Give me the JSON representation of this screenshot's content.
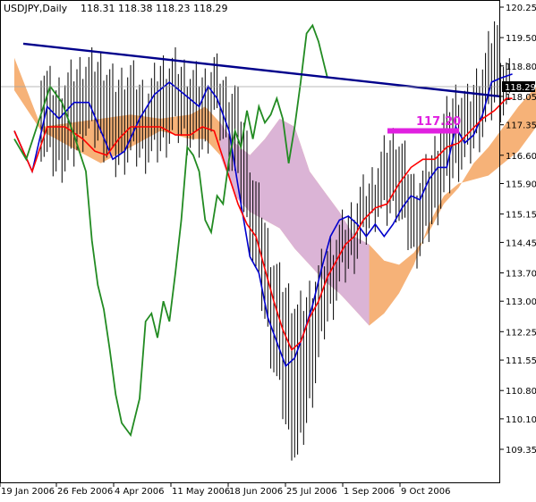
{
  "header": {
    "symbol": "USDJPY,Daily",
    "ohlc": "118.31 118.38 118.23 118.29"
  },
  "annotation": {
    "label": "117.20",
    "color": "#e020e0"
  },
  "colors": {
    "price_bars": "#000000",
    "trendline": "#00008b",
    "kijun": "#ff0000",
    "tenkan": "#0000cd",
    "chikou": "#228b22",
    "kumo_bull": "#f4a460",
    "kumo_bear": "#d8b4e0",
    "grid": "#c0c0c0"
  },
  "chart_data": {
    "type": "line",
    "title": "USDJPY,Daily",
    "ylim": [
      108.8,
      120.45
    ],
    "y_ticks": [
      "120.25",
      "119.50",
      "118.80",
      "118.05",
      "117.35",
      "116.60",
      "115.90",
      "115.15",
      "114.45",
      "113.70",
      "113.00",
      "112.25",
      "111.55",
      "110.80",
      "110.10",
      "109.35"
    ],
    "x_labels": [
      "19 Jan 2006",
      "26 Feb 2006",
      "4 Apr 2006",
      "11 May 2006",
      "18 Jun 2006",
      "25 Jul 2006",
      "1 Sep 2006",
      "9 Oct 2006"
    ],
    "current_price": 118.29,
    "current_price_label": "118.29",
    "trendline": [
      {
        "x": "2006-01-23",
        "y": 119.35
      },
      {
        "x": "2006-11-10",
        "y": 118.05
      }
    ],
    "series": [
      {
        "name": "",
        "role": "price",
        "style": "bars",
        "points": [
          [
            0,
            118.8,
            116.8
          ],
          [
            5,
            118.2,
            116.2
          ],
          [
            10,
            118.6,
            116.4
          ],
          [
            15,
            118.9,
            117.2
          ],
          [
            20,
            118.9,
            116.9
          ],
          [
            25,
            118.4,
            116.3
          ],
          [
            30,
            118.7,
            116.6
          ],
          [
            35,
            118.1,
            116.5
          ],
          [
            40,
            118.8,
            116.7
          ],
          [
            45,
            118.9,
            117.2
          ],
          [
            50,
            118.6,
            116.9
          ],
          [
            55,
            118.5,
            116.7
          ],
          [
            58,
            118.9,
            117.6
          ],
          [
            62,
            118.3,
            116.8
          ],
          [
            65,
            118.2,
            116.1
          ],
          [
            68,
            117.4,
            115.2
          ],
          [
            71,
            116.1,
            114.1
          ],
          [
            74,
            115.3,
            113.0
          ],
          [
            77,
            114.2,
            111.7
          ],
          [
            80,
            113.6,
            110.7
          ],
          [
            83,
            113.2,
            109.6
          ],
          [
            86,
            112.8,
            109.1
          ],
          [
            89,
            113.1,
            110.0
          ],
          [
            92,
            113.6,
            111.1
          ],
          [
            95,
            114.1,
            112.3
          ],
          [
            98,
            114.5,
            112.9
          ],
          [
            101,
            114.9,
            113.6
          ],
          [
            104,
            115.2,
            113.9
          ],
          [
            107,
            115.7,
            114.3
          ],
          [
            110,
            115.9,
            114.8
          ],
          [
            113,
            116.4,
            115.2
          ],
          [
            116,
            116.9,
            115.1
          ],
          [
            119,
            117.1,
            115.3
          ],
          [
            122,
            116.6,
            114.7
          ],
          [
            125,
            115.9,
            114.1
          ],
          [
            128,
            116.1,
            114.3
          ],
          [
            131,
            116.6,
            114.9
          ],
          [
            134,
            117.3,
            115.4
          ],
          [
            137,
            117.9,
            115.9
          ],
          [
            140,
            118.2,
            116.3
          ],
          [
            143,
            118.0,
            116.5
          ],
          [
            146,
            118.5,
            116.9
          ],
          [
            149,
            119.0,
            117.3
          ],
          [
            152,
            119.9,
            117.9
          ],
          [
            155,
            118.9,
            117.7
          ],
          [
            158,
            118.5,
            117.8
          ]
        ]
      },
      {
        "name": "",
        "role": "tenkan",
        "values": [
          [
            -9,
            117.2
          ],
          [
            -3,
            116.2
          ],
          [
            2,
            117.8
          ],
          [
            6,
            117.5
          ],
          [
            11,
            117.9
          ],
          [
            16,
            117.9
          ],
          [
            20,
            117.2
          ],
          [
            24,
            116.5
          ],
          [
            28,
            116.7
          ],
          [
            33,
            117.5
          ],
          [
            38,
            118.1
          ],
          [
            43,
            118.4
          ],
          [
            48,
            118.1
          ],
          [
            53,
            117.8
          ],
          [
            56,
            118.3
          ],
          [
            59,
            118.0
          ],
          [
            63,
            117.2
          ],
          [
            67,
            115.4
          ],
          [
            70,
            114.1
          ],
          [
            73,
            113.7
          ],
          [
            76,
            112.6
          ],
          [
            79,
            112.0
          ],
          [
            82,
            111.4
          ],
          [
            85,
            111.6
          ],
          [
            88,
            112.2
          ],
          [
            91,
            112.9
          ],
          [
            94,
            113.8
          ],
          [
            97,
            114.6
          ],
          [
            100,
            115.0
          ],
          [
            103,
            115.1
          ],
          [
            106,
            114.9
          ],
          [
            109,
            114.6
          ],
          [
            112,
            114.9
          ],
          [
            115,
            114.6
          ],
          [
            118,
            114.9
          ],
          [
            121,
            115.3
          ],
          [
            124,
            115.6
          ],
          [
            127,
            115.5
          ],
          [
            130,
            116.0
          ],
          [
            133,
            116.3
          ],
          [
            136,
            116.3
          ],
          [
            139,
            117.3
          ],
          [
            142,
            116.9
          ],
          [
            145,
            117.1
          ],
          [
            148,
            117.6
          ],
          [
            151,
            118.4
          ],
          [
            154,
            118.5
          ],
          [
            158,
            118.6
          ]
        ]
      },
      {
        "name": "",
        "role": "kijun",
        "values": [
          [
            -9,
            117.2
          ],
          [
            -3,
            116.2
          ],
          [
            2,
            117.3
          ],
          [
            8,
            117.3
          ],
          [
            14,
            117.0
          ],
          [
            18,
            116.7
          ],
          [
            22,
            116.6
          ],
          [
            26,
            117.0
          ],
          [
            30,
            117.3
          ],
          [
            40,
            117.3
          ],
          [
            45,
            117.1
          ],
          [
            50,
            117.1
          ],
          [
            54,
            117.3
          ],
          [
            58,
            117.2
          ],
          [
            62,
            116.3
          ],
          [
            66,
            115.4
          ],
          [
            69,
            114.9
          ],
          [
            72,
            114.6
          ],
          [
            75,
            113.8
          ],
          [
            78,
            113.0
          ],
          [
            81,
            112.3
          ],
          [
            84,
            111.8
          ],
          [
            87,
            112.0
          ],
          [
            90,
            112.6
          ],
          [
            93,
            113.0
          ],
          [
            96,
            113.6
          ],
          [
            99,
            114.0
          ],
          [
            102,
            114.4
          ],
          [
            105,
            114.6
          ],
          [
            108,
            115.0
          ],
          [
            112,
            115.3
          ],
          [
            116,
            115.4
          ],
          [
            120,
            115.9
          ],
          [
            124,
            116.3
          ],
          [
            128,
            116.5
          ],
          [
            132,
            116.5
          ],
          [
            136,
            116.8
          ],
          [
            140,
            116.9
          ],
          [
            144,
            117.2
          ],
          [
            148,
            117.5
          ],
          [
            152,
            117.7
          ],
          [
            156,
            118.0
          ],
          [
            158,
            118.0
          ]
        ]
      },
      {
        "name": "",
        "role": "chikou",
        "values": [
          [
            -9,
            117.0
          ],
          [
            -5,
            116.5
          ],
          [
            -1,
            117.4
          ],
          [
            3,
            118.3
          ],
          [
            7,
            117.9
          ],
          [
            11,
            117.1
          ],
          [
            15,
            116.2
          ],
          [
            17,
            114.5
          ],
          [
            19,
            113.4
          ],
          [
            21,
            112.8
          ],
          [
            23,
            111.8
          ],
          [
            25,
            110.7
          ],
          [
            27,
            110.0
          ],
          [
            30,
            109.7
          ],
          [
            33,
            110.6
          ],
          [
            35,
            112.5
          ],
          [
            37,
            112.7
          ],
          [
            39,
            112.1
          ],
          [
            41,
            113.0
          ],
          [
            43,
            112.5
          ],
          [
            45,
            113.7
          ],
          [
            47,
            115.0
          ],
          [
            49,
            116.8
          ],
          [
            51,
            116.6
          ],
          [
            53,
            116.2
          ],
          [
            55,
            115.0
          ],
          [
            57,
            114.7
          ],
          [
            59,
            115.6
          ],
          [
            61,
            115.4
          ],
          [
            63,
            116.5
          ],
          [
            65,
            117.2
          ],
          [
            67,
            116.8
          ],
          [
            69,
            117.7
          ],
          [
            71,
            117.0
          ],
          [
            73,
            117.8
          ],
          [
            75,
            117.4
          ],
          [
            77,
            117.6
          ],
          [
            79,
            118.0
          ],
          [
            81,
            117.5
          ],
          [
            83,
            116.4
          ],
          [
            85,
            117.3
          ],
          [
            87,
            118.4
          ],
          [
            89,
            119.6
          ],
          [
            91,
            119.8
          ],
          [
            93,
            119.4
          ],
          [
            95,
            118.8
          ],
          [
            96,
            118.5
          ]
        ]
      },
      {
        "name": "",
        "role": "kumo",
        "upper": [
          [
            -9,
            119.0
          ],
          [
            0,
            117.3
          ],
          [
            10,
            117.4
          ],
          [
            20,
            117.5
          ],
          [
            30,
            117.6
          ],
          [
            40,
            117.5
          ],
          [
            50,
            117.6
          ],
          [
            55,
            117.8
          ],
          [
            60,
            117.4
          ],
          [
            65,
            116.9
          ],
          [
            70,
            116.6
          ],
          [
            75,
            117.0
          ],
          [
            80,
            117.5
          ],
          [
            85,
            117.3
          ],
          [
            90,
            116.2
          ],
          [
            95,
            115.7
          ],
          [
            100,
            115.2
          ],
          [
            105,
            114.6
          ],
          [
            110,
            114.4
          ],
          [
            115,
            114.0
          ],
          [
            120,
            113.9
          ],
          [
            125,
            114.2
          ],
          [
            130,
            114.7
          ],
          [
            135,
            115.4
          ],
          [
            140,
            115.8
          ],
          [
            145,
            116.4
          ],
          [
            150,
            116.8
          ],
          [
            155,
            117.3
          ],
          [
            160,
            117.8
          ],
          [
            166,
            118.3
          ]
        ],
        "lower": [
          [
            -9,
            118.2
          ],
          [
            0,
            117.2
          ],
          [
            10,
            116.8
          ],
          [
            20,
            116.4
          ],
          [
            30,
            116.8
          ],
          [
            40,
            117.2
          ],
          [
            50,
            117.0
          ],
          [
            55,
            117.0
          ],
          [
            60,
            116.6
          ],
          [
            65,
            115.6
          ],
          [
            70,
            115.2
          ],
          [
            75,
            115.0
          ],
          [
            80,
            114.8
          ],
          [
            85,
            114.3
          ],
          [
            90,
            113.9
          ],
          [
            95,
            113.5
          ],
          [
            100,
            113.2
          ],
          [
            105,
            112.8
          ],
          [
            110,
            112.4
          ],
          [
            115,
            112.7
          ],
          [
            120,
            113.2
          ],
          [
            125,
            113.9
          ],
          [
            130,
            114.9
          ],
          [
            135,
            115.6
          ],
          [
            140,
            115.9
          ],
          [
            145,
            116.0
          ],
          [
            150,
            116.1
          ],
          [
            155,
            116.4
          ],
          [
            160,
            116.7
          ],
          [
            166,
            117.3
          ]
        ]
      }
    ],
    "grid": false,
    "legend": "none"
  }
}
